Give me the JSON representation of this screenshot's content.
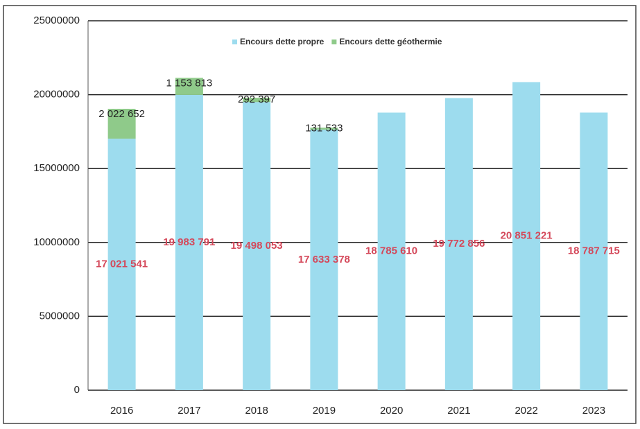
{
  "chart_data": {
    "type": "stacked_bar",
    "categories": [
      "2016",
      "2017",
      "2018",
      "2019",
      "2020",
      "2021",
      "2022",
      "2023"
    ],
    "series": [
      {
        "name": "Encours dette propre",
        "color": "#9ddcee",
        "values": [
          17021541,
          19983791,
          19498053,
          17633378,
          18785610,
          19772856,
          20851221,
          18787715
        ],
        "value_labels": [
          "17 021 541",
          "19 983 791",
          "19 498 053",
          "17 633 378",
          "18 785 610",
          "19 772 856",
          "20 851 221",
          "18 787 715"
        ]
      },
      {
        "name": "Encours dette géothermie",
        "color": "#8fca8a",
        "values": [
          2022652,
          1153813,
          292397,
          131533,
          null,
          null,
          null,
          null
        ],
        "value_labels": [
          "2 022 652",
          "1 153 813",
          "292 397",
          "131 533",
          null,
          null,
          null,
          null
        ]
      }
    ],
    "ylim": [
      0,
      25000000
    ],
    "yticks": [
      0,
      5000000,
      10000000,
      15000000,
      20000000,
      25000000
    ],
    "grid": true,
    "legend": "top"
  }
}
